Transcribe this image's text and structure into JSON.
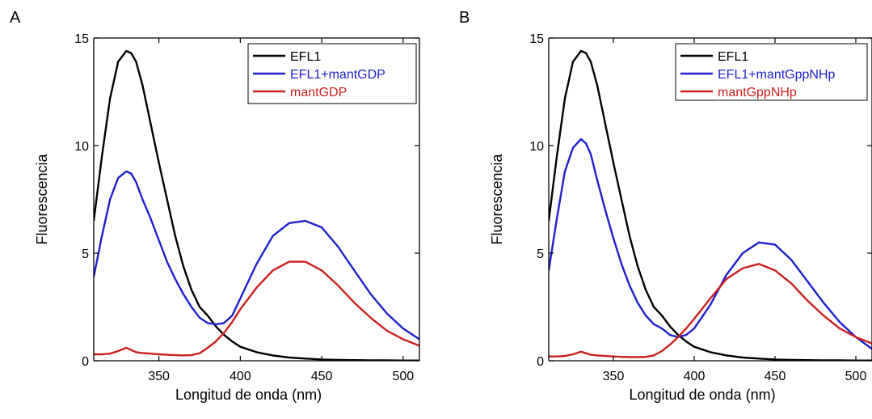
{
  "chart_data": [
    {
      "type": "line",
      "panel": "A",
      "xlabel": "Longitud de onda (nm)",
      "ylabel": "Fluorescencia",
      "xlim": [
        310,
        510
      ],
      "ylim": [
        0,
        15
      ],
      "xticks": [
        350,
        400,
        450,
        500
      ],
      "yticks": [
        0,
        5,
        10,
        15
      ],
      "grid": false,
      "legend_position": "top-right",
      "series": [
        {
          "name": "EFL1",
          "color": "#000000",
          "x": [
            310,
            315,
            320,
            325,
            330,
            333,
            336,
            340,
            345,
            350,
            355,
            360,
            365,
            370,
            375,
            380,
            385,
            390,
            395,
            400,
            410,
            420,
            430,
            440,
            450,
            460,
            470,
            480,
            490,
            500,
            510
          ],
          "y": [
            6.5,
            9.5,
            12.2,
            13.9,
            14.4,
            14.3,
            13.9,
            12.8,
            11.0,
            9.2,
            7.5,
            5.8,
            4.4,
            3.3,
            2.5,
            2.1,
            1.6,
            1.2,
            0.9,
            0.65,
            0.4,
            0.25,
            0.15,
            0.1,
            0.06,
            0.04,
            0.03,
            0.02,
            0.02,
            0.01,
            0.01
          ]
        },
        {
          "name": "EFL1+mantGDP",
          "color": "#1f1fcc",
          "x": [
            310,
            315,
            320,
            325,
            330,
            333,
            336,
            340,
            345,
            350,
            355,
            360,
            365,
            370,
            375,
            380,
            385,
            390,
            395,
            400,
            410,
            420,
            430,
            440,
            450,
            460,
            470,
            480,
            490,
            500,
            510
          ],
          "y": [
            3.9,
            5.8,
            7.5,
            8.5,
            8.8,
            8.7,
            8.3,
            7.5,
            6.6,
            5.6,
            4.6,
            3.8,
            3.1,
            2.5,
            2.0,
            1.75,
            1.7,
            1.75,
            2.1,
            2.9,
            4.5,
            5.8,
            6.4,
            6.5,
            6.2,
            5.3,
            4.2,
            3.1,
            2.2,
            1.5,
            1.0
          ]
        },
        {
          "name": "mantGDP",
          "color": "#cc1f1f",
          "x": [
            310,
            315,
            320,
            325,
            330,
            333,
            336,
            340,
            345,
            350,
            355,
            360,
            365,
            370,
            375,
            380,
            385,
            390,
            395,
            400,
            410,
            420,
            430,
            440,
            450,
            460,
            470,
            480,
            490,
            500,
            510
          ],
          "y": [
            0.3,
            0.3,
            0.33,
            0.45,
            0.6,
            0.5,
            0.4,
            0.36,
            0.33,
            0.3,
            0.28,
            0.26,
            0.25,
            0.26,
            0.35,
            0.6,
            0.9,
            1.3,
            1.8,
            2.4,
            3.4,
            4.2,
            4.6,
            4.6,
            4.2,
            3.5,
            2.7,
            2.0,
            1.4,
            1.0,
            0.7
          ]
        }
      ]
    },
    {
      "type": "line",
      "panel": "B",
      "xlabel": "Longitud de onda (nm)",
      "ylabel": "Fluorescencia",
      "xlim": [
        310,
        510
      ],
      "ylim": [
        0,
        15
      ],
      "xticks": [
        350,
        400,
        450,
        500
      ],
      "yticks": [
        0,
        5,
        10,
        15
      ],
      "grid": false,
      "legend_position": "top-right",
      "series": [
        {
          "name": "EFL1",
          "color": "#000000",
          "x": [
            310,
            315,
            320,
            325,
            330,
            333,
            336,
            340,
            345,
            350,
            355,
            360,
            365,
            370,
            375,
            380,
            385,
            390,
            395,
            400,
            410,
            420,
            430,
            440,
            450,
            460,
            470,
            480,
            490,
            500,
            510
          ],
          "y": [
            6.5,
            9.5,
            12.2,
            13.9,
            14.4,
            14.3,
            13.9,
            12.8,
            11.0,
            9.2,
            7.5,
            5.8,
            4.4,
            3.3,
            2.5,
            2.1,
            1.6,
            1.2,
            0.9,
            0.65,
            0.4,
            0.25,
            0.15,
            0.1,
            0.06,
            0.04,
            0.03,
            0.02,
            0.02,
            0.01,
            0.01
          ]
        },
        {
          "name": "EFL1+mantGppNHp",
          "color": "#1f1fcc",
          "x": [
            310,
            315,
            320,
            325,
            330,
            333,
            336,
            340,
            345,
            350,
            355,
            360,
            365,
            370,
            375,
            380,
            385,
            390,
            395,
            400,
            410,
            420,
            430,
            440,
            450,
            460,
            470,
            480,
            490,
            500,
            510
          ],
          "y": [
            4.2,
            6.6,
            8.8,
            9.9,
            10.3,
            10.1,
            9.6,
            8.4,
            7.0,
            5.7,
            4.5,
            3.5,
            2.7,
            2.1,
            1.7,
            1.5,
            1.2,
            1.1,
            1.2,
            1.5,
            2.6,
            4.0,
            5.0,
            5.5,
            5.4,
            4.7,
            3.7,
            2.7,
            1.8,
            1.1,
            0.55
          ]
        },
        {
          "name": "mantGppNHp",
          "color": "#cc1f1f",
          "x": [
            310,
            315,
            320,
            325,
            330,
            333,
            336,
            340,
            345,
            350,
            355,
            360,
            365,
            370,
            375,
            380,
            385,
            390,
            395,
            400,
            410,
            420,
            430,
            440,
            450,
            460,
            470,
            480,
            490,
            500,
            510
          ],
          "y": [
            0.2,
            0.2,
            0.22,
            0.3,
            0.42,
            0.35,
            0.28,
            0.25,
            0.22,
            0.2,
            0.18,
            0.17,
            0.17,
            0.18,
            0.25,
            0.45,
            0.75,
            1.1,
            1.5,
            1.95,
            2.9,
            3.8,
            4.3,
            4.5,
            4.2,
            3.6,
            2.8,
            2.1,
            1.5,
            1.1,
            0.8
          ]
        }
      ]
    }
  ]
}
